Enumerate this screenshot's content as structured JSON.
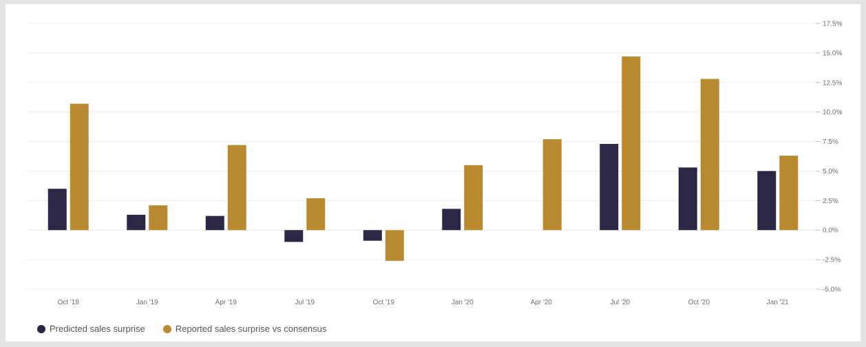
{
  "chart_data": {
    "type": "bar",
    "categories": [
      "Oct '18",
      "Jan '19",
      "Apr '19",
      "Jul '19",
      "Oct '19",
      "Jan '20",
      "Apr '20",
      "Jul '20",
      "Oct '20",
      "Jan '21"
    ],
    "series": [
      {
        "name": "Predicted sales surprise",
        "color": "#2b2745",
        "values": [
          3.5,
          1.3,
          1.2,
          -1.0,
          -0.9,
          1.8,
          0.0,
          7.3,
          5.3,
          5.0
        ]
      },
      {
        "name": "Reported sales surprise vs consensus",
        "color": "#b98a30",
        "values": [
          10.7,
          2.1,
          7.2,
          2.7,
          -2.6,
          5.5,
          7.7,
          14.7,
          12.8,
          6.3
        ]
      }
    ],
    "y_ticks": [
      "17.5%",
      "15.0%",
      "12.5%",
      "10.0%",
      "7.5%",
      "5.0%",
      "2.5%",
      "0.0%",
      "-2.5%",
      "-5.0%"
    ],
    "ylim": [
      -5.0,
      17.5
    ],
    "y_axis_position": "right",
    "grid": true,
    "legend_position": "bottom-left",
    "title": "",
    "xlabel": "",
    "ylabel": ""
  }
}
